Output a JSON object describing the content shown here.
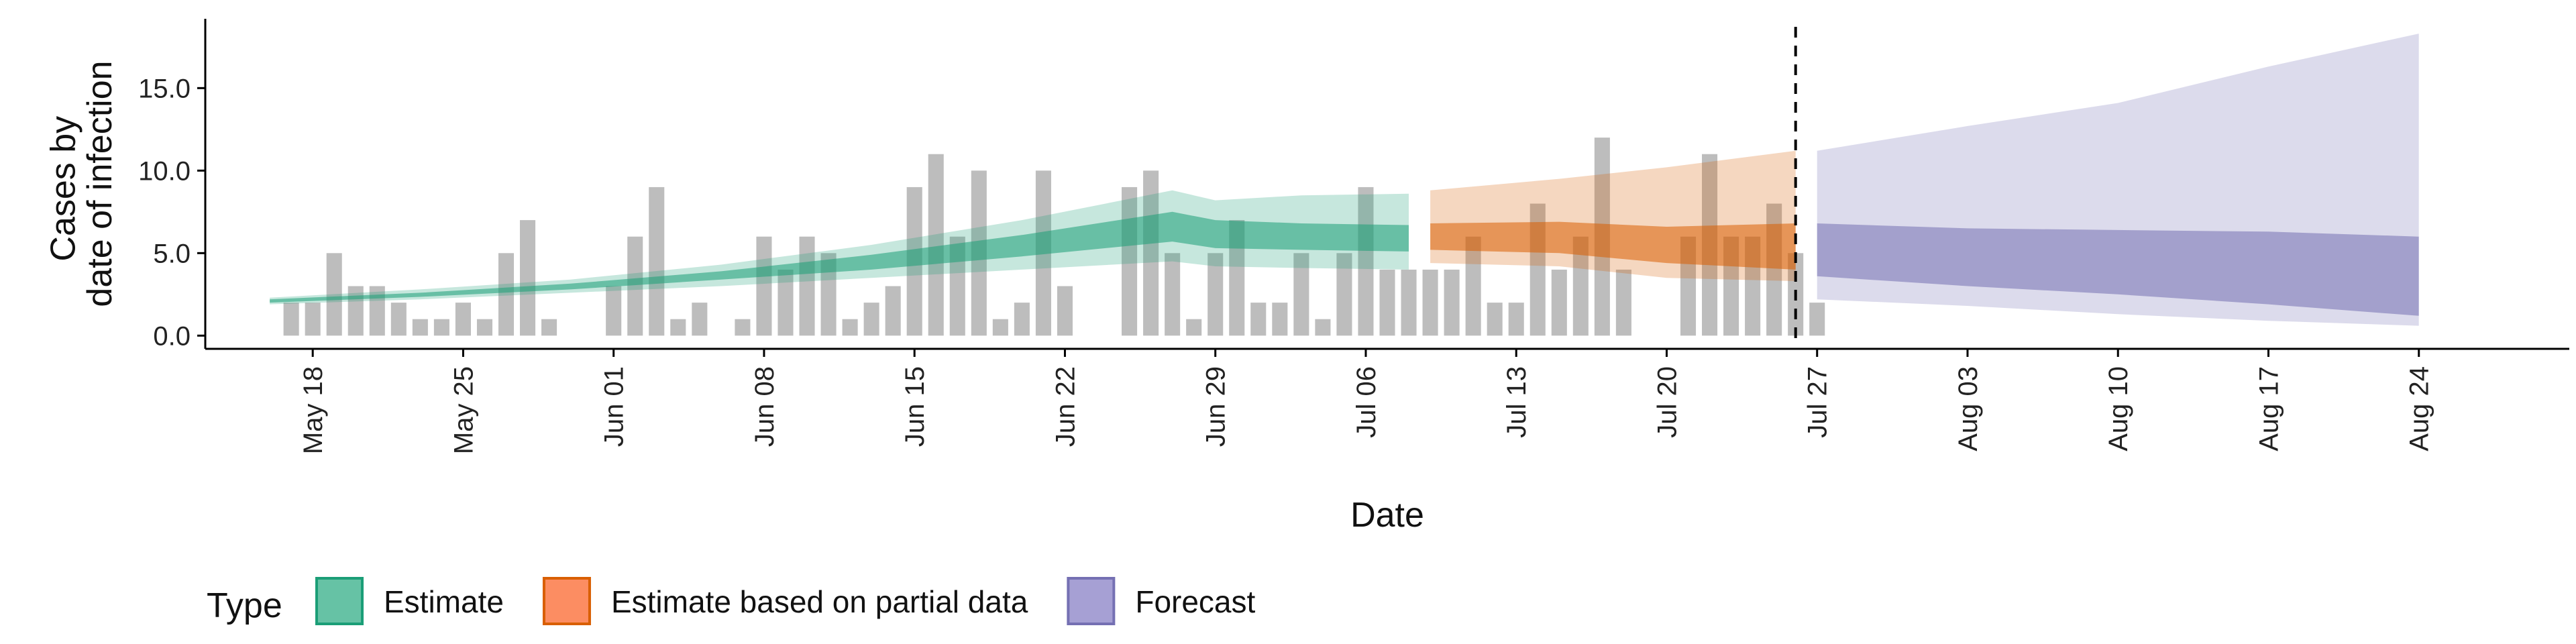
{
  "chart_data": {
    "type": "area",
    "title": "",
    "xlabel": "Date",
    "ylabel_lines": [
      "Cases by",
      "date of infection"
    ],
    "ylim": [
      -0.8,
      19.2
    ],
    "xlim": [
      "2020-05-13",
      "2020-08-31"
    ],
    "yticks": [
      {
        "value": 0,
        "label": "0.0"
      },
      {
        "value": 5,
        "label": "5.0"
      },
      {
        "value": 10,
        "label": "10.0"
      },
      {
        "value": 15,
        "label": "15.0"
      }
    ],
    "xticks": [
      {
        "date": "2020-05-18",
        "label": "May 18"
      },
      {
        "date": "2020-05-25",
        "label": "May 25"
      },
      {
        "date": "2020-06-01",
        "label": "Jun 01"
      },
      {
        "date": "2020-06-08",
        "label": "Jun 08"
      },
      {
        "date": "2020-06-15",
        "label": "Jun 15"
      },
      {
        "date": "2020-06-22",
        "label": "Jun 22"
      },
      {
        "date": "2020-06-29",
        "label": "Jun 29"
      },
      {
        "date": "2020-07-06",
        "label": "Jul 06"
      },
      {
        "date": "2020-07-13",
        "label": "Jul 13"
      },
      {
        "date": "2020-07-20",
        "label": "Jul 20"
      },
      {
        "date": "2020-07-27",
        "label": "Jul 27"
      },
      {
        "date": "2020-08-03",
        "label": "Aug 03"
      },
      {
        "date": "2020-08-10",
        "label": "Aug 10"
      },
      {
        "date": "2020-08-17",
        "label": "Aug 17"
      },
      {
        "date": "2020-08-24",
        "label": "Aug 24"
      }
    ],
    "vline_date": "2020-07-26",
    "bar_color": "#bdbdbd",
    "bars": {
      "start": "2020-05-17",
      "values": [
        2,
        2,
        5,
        3,
        3,
        2,
        1,
        1,
        2,
        1,
        5,
        7,
        1,
        0,
        0,
        3,
        6,
        9,
        1,
        2,
        0,
        1,
        6,
        4,
        6,
        5,
        1,
        2,
        3,
        9,
        11,
        6,
        10,
        1,
        2,
        10,
        3,
        0,
        0,
        9,
        10,
        5,
        1,
        5,
        7,
        2,
        2,
        5,
        1,
        5,
        9,
        4,
        4,
        4,
        4,
        6,
        2,
        2,
        8,
        4,
        6,
        12,
        4,
        0,
        0,
        6,
        11,
        6,
        6,
        8,
        5,
        2
      ]
    },
    "legend": {
      "title": "Type",
      "placement": "bottom",
      "items": [
        {
          "label": "Estimate",
          "fill": "#66c2a5",
          "stroke": "#1b9e77"
        },
        {
          "label": "Estimate based on partial data",
          "fill": "#fc8d62",
          "stroke": "#d95f02"
        },
        {
          "label": "Forecast",
          "fill": "#a6a0d4",
          "stroke": "#7570b3"
        }
      ]
    },
    "series": [
      {
        "type": "Estimate",
        "color": "#1b9e77",
        "points": [
          {
            "date": "2020-05-16",
            "outer_lo": 1.9,
            "outer_hi": 2.3,
            "inner_lo": 2.0,
            "inner_hi": 2.2
          },
          {
            "date": "2020-05-23",
            "outer_lo": 2.2,
            "outer_hi": 2.8,
            "inner_lo": 2.35,
            "inner_hi": 2.6
          },
          {
            "date": "2020-05-30",
            "outer_lo": 2.6,
            "outer_hi": 3.4,
            "inner_lo": 2.8,
            "inner_hi": 3.15
          },
          {
            "date": "2020-06-06",
            "outer_lo": 3.0,
            "outer_hi": 4.3,
            "inner_lo": 3.4,
            "inner_hi": 3.9
          },
          {
            "date": "2020-06-13",
            "outer_lo": 3.5,
            "outer_hi": 5.5,
            "inner_lo": 4.0,
            "inner_hi": 4.9
          },
          {
            "date": "2020-06-20",
            "outer_lo": 4.0,
            "outer_hi": 7.0,
            "inner_lo": 4.8,
            "inner_hi": 6.1
          },
          {
            "date": "2020-06-27",
            "outer_lo": 4.5,
            "outer_hi": 8.8,
            "inner_lo": 5.7,
            "inner_hi": 7.5
          },
          {
            "date": "2020-06-29",
            "outer_lo": 4.2,
            "outer_hi": 8.2,
            "inner_lo": 5.3,
            "inner_hi": 7.0
          },
          {
            "date": "2020-07-03",
            "outer_lo": 4.1,
            "outer_hi": 8.5,
            "inner_lo": 5.2,
            "inner_hi": 6.8
          },
          {
            "date": "2020-07-08",
            "outer_lo": 4.0,
            "outer_hi": 8.6,
            "inner_lo": 5.1,
            "inner_hi": 6.7
          }
        ]
      },
      {
        "type": "Estimate based on partial data",
        "color": "#d95f02",
        "points": [
          {
            "date": "2020-07-09",
            "outer_lo": 4.4,
            "outer_hi": 8.8,
            "inner_lo": 5.2,
            "inner_hi": 6.8
          },
          {
            "date": "2020-07-15",
            "outer_lo": 4.2,
            "outer_hi": 9.5,
            "inner_lo": 5.0,
            "inner_hi": 6.9
          },
          {
            "date": "2020-07-20",
            "outer_lo": 3.5,
            "outer_hi": 10.2,
            "inner_lo": 4.4,
            "inner_hi": 6.6
          },
          {
            "date": "2020-07-26",
            "outer_lo": 3.3,
            "outer_hi": 11.2,
            "inner_lo": 4.0,
            "inner_hi": 6.8
          }
        ]
      },
      {
        "type": "Forecast",
        "color": "#7570b3",
        "points": [
          {
            "date": "2020-07-27",
            "outer_lo": 2.2,
            "outer_hi": 11.2,
            "inner_lo": 3.6,
            "inner_hi": 6.8
          },
          {
            "date": "2020-08-03",
            "outer_lo": 1.8,
            "outer_hi": 12.7,
            "inner_lo": 3.0,
            "inner_hi": 6.5
          },
          {
            "date": "2020-08-10",
            "outer_lo": 1.3,
            "outer_hi": 14.1,
            "inner_lo": 2.5,
            "inner_hi": 6.4
          },
          {
            "date": "2020-08-17",
            "outer_lo": 0.9,
            "outer_hi": 16.3,
            "inner_lo": 1.9,
            "inner_hi": 6.3
          },
          {
            "date": "2020-08-24",
            "outer_lo": 0.6,
            "outer_hi": 18.3,
            "inner_lo": 1.2,
            "inner_hi": 6.0
          }
        ]
      }
    ]
  }
}
